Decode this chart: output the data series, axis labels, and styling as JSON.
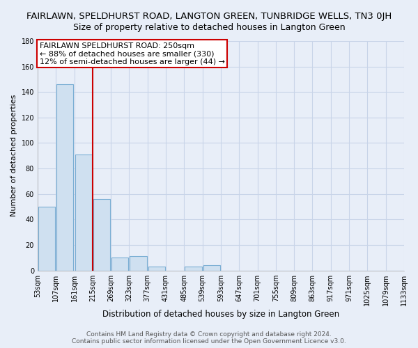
{
  "title": "FAIRLAWN, SPELDHURST ROAD, LANGTON GREEN, TUNBRIDGE WELLS, TN3 0JH",
  "subtitle": "Size of property relative to detached houses in Langton Green",
  "xlabel": "Distribution of detached houses by size in Langton Green",
  "ylabel": "Number of detached properties",
  "bar_values": [
    50,
    146,
    91,
    56,
    10,
    11,
    3,
    0,
    3,
    4,
    0,
    0,
    0,
    0,
    0,
    0,
    0,
    0,
    0,
    0
  ],
  "bin_labels": [
    "53sqm",
    "107sqm",
    "161sqm",
    "215sqm",
    "269sqm",
    "323sqm",
    "377sqm",
    "431sqm",
    "485sqm",
    "539sqm",
    "593sqm",
    "647sqm",
    "701sqm",
    "755sqm",
    "809sqm",
    "863sqm",
    "917sqm",
    "971sqm",
    "1025sqm",
    "1079sqm",
    "1133sqm"
  ],
  "bar_color": "#cfe0f0",
  "bar_edge_color": "#7bafd4",
  "vline_color": "#cc0000",
  "annotation_lines": [
    "FAIRLAWN SPELDHURST ROAD: 250sqm",
    "← 88% of detached houses are smaller (330)",
    "12% of semi-detached houses are larger (44) →"
  ],
  "ylim": [
    0,
    180
  ],
  "yticks": [
    0,
    20,
    40,
    60,
    80,
    100,
    120,
    140,
    160,
    180
  ],
  "footer_line1": "Contains HM Land Registry data © Crown copyright and database right 2024.",
  "footer_line2": "Contains public sector information licensed under the Open Government Licence v3.0.",
  "bg_color": "#e8eef8",
  "grid_color": "#c8d4e8",
  "title_fontsize": 9.5,
  "subtitle_fontsize": 9,
  "xlabel_fontsize": 8.5,
  "ylabel_fontsize": 8,
  "tick_fontsize": 7,
  "annotation_fontsize": 8,
  "footer_fontsize": 6.5
}
